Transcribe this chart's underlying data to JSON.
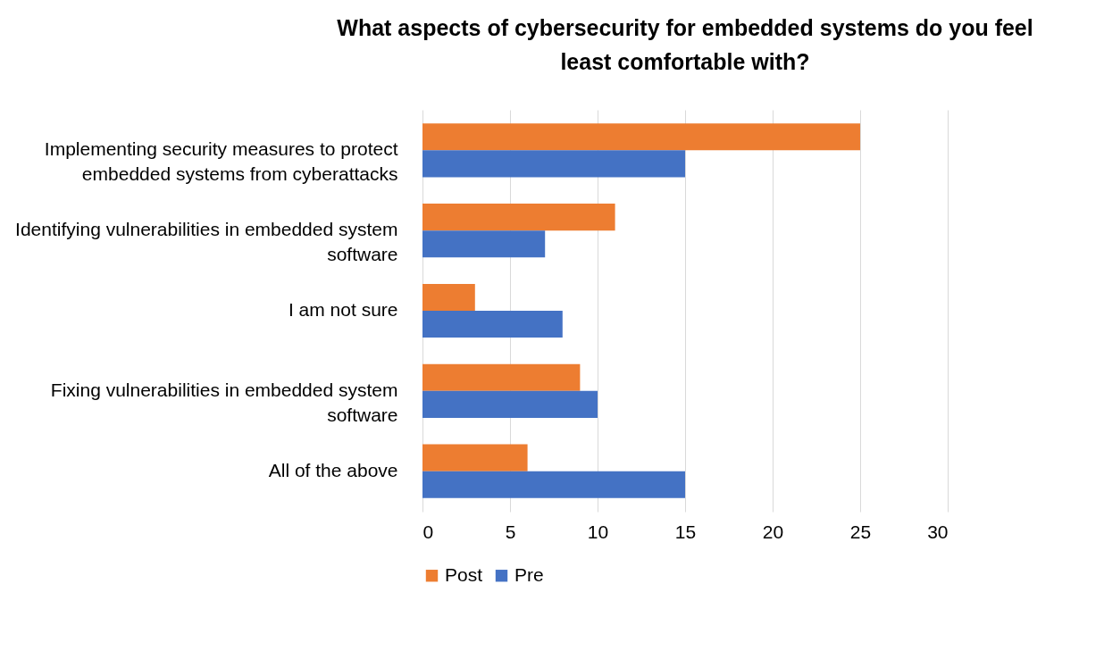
{
  "chart_data": {
    "type": "bar",
    "orientation": "horizontal",
    "title": "What aspects of cybersecurity for embedded systems do you feel least comfortable with?",
    "categories": [
      "Implementing security measures to protect embedded systems from cyberattacks",
      "Identifying vulnerabilities in embedded system software",
      "I am not sure",
      "Fixing vulnerabilities in embedded system software",
      "All of the above"
    ],
    "series": [
      {
        "name": "Post",
        "color": "#ed7d31",
        "values": [
          25,
          11,
          3,
          9,
          6
        ]
      },
      {
        "name": "Pre",
        "color": "#4472c4",
        "values": [
          15,
          7,
          8,
          10,
          15
        ]
      }
    ],
    "xlim": [
      0,
      30
    ],
    "xticks": [
      0,
      5,
      10,
      15,
      20,
      25,
      30
    ],
    "grid": "x",
    "legend": "bottom"
  }
}
